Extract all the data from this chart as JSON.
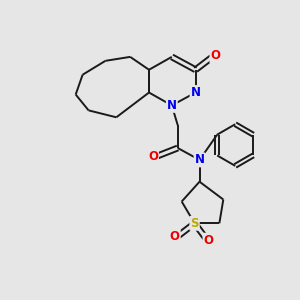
{
  "background_color": "#e6e6e6",
  "bond_color": "#1a1a1a",
  "bond_width": 1.4,
  "atom_colors": {
    "C": "#1a1a1a",
    "N": "#0000ee",
    "O": "#ee0000",
    "S": "#bbaa00"
  },
  "figsize": [
    3.0,
    3.0
  ],
  "dpi": 100
}
